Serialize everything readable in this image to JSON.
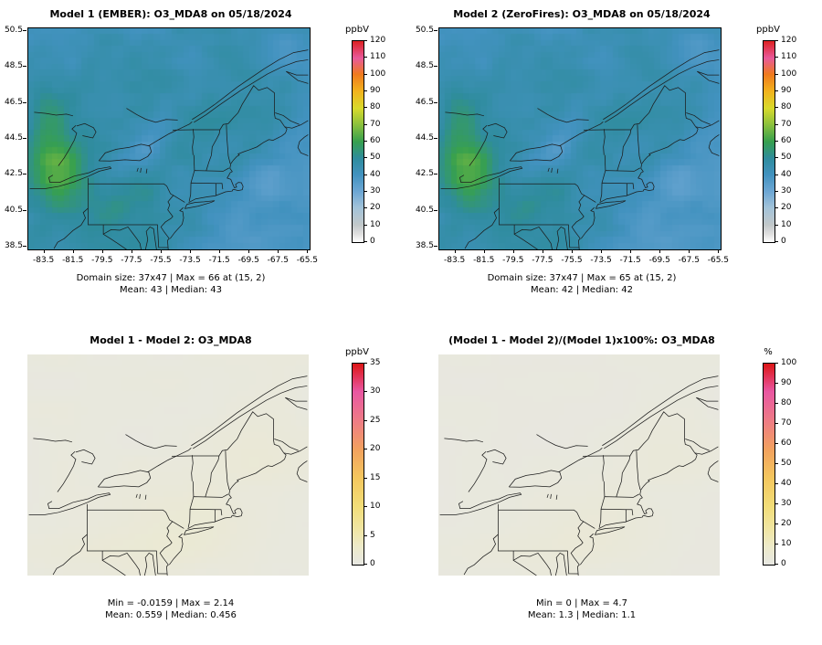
{
  "figure": {
    "background": "#ffffff",
    "layout": "2x2 model evaluation spatial plots"
  },
  "chart_data": [
    {
      "type": "heatmap",
      "panel": "top-left",
      "title": "Model 1 (EMBER): O3_MDA8 on 05/18/2024",
      "model_label": "Model 1 (EMBER)",
      "variable": "O3_MDA8",
      "date": "05/18/2024",
      "colorbar_label": "ppbV",
      "colorbar_range": [
        0,
        120
      ],
      "colorbar_ticks": [
        0,
        10,
        20,
        30,
        40,
        50,
        60,
        70,
        80,
        90,
        100,
        110,
        120
      ],
      "x_ticks": [
        -83.5,
        -81.5,
        -79.5,
        -77.5,
        -75.5,
        -73.5,
        -71.5,
        -69.5,
        -67.5,
        -65.5
      ],
      "y_ticks": [
        38.5,
        40.5,
        42.5,
        44.5,
        46.5,
        48.5,
        50.5
      ],
      "stats": {
        "domain_size": "37x47",
        "max": 66,
        "max_at": "(15, 2)",
        "mean": 43,
        "median": 43
      },
      "stats_line1": "Domain size: 37x47 | Max = 66 at (15, 2)",
      "stats_line2": "Mean: 43 | Median: 43",
      "palette": "conc",
      "field_id": "conc1"
    },
    {
      "type": "heatmap",
      "panel": "top-right",
      "title": "Model 2 (ZeroFires): O3_MDA8 on 05/18/2024",
      "model_label": "Model 2 (ZeroFires)",
      "variable": "O3_MDA8",
      "date": "05/18/2024",
      "colorbar_label": "ppbV",
      "colorbar_range": [
        0,
        120
      ],
      "colorbar_ticks": [
        0,
        10,
        20,
        30,
        40,
        50,
        60,
        70,
        80,
        90,
        100,
        110,
        120
      ],
      "x_ticks": [
        -83.5,
        -81.5,
        -79.5,
        -77.5,
        -75.5,
        -73.5,
        -71.5,
        -69.5,
        -67.5,
        -65.5
      ],
      "y_ticks": [
        38.5,
        40.5,
        42.5,
        44.5,
        46.5,
        48.5,
        50.5
      ],
      "stats": {
        "domain_size": "37x47",
        "max": 65,
        "max_at": "(15, 2)",
        "mean": 42,
        "median": 42
      },
      "stats_line1": "Domain size: 37x47 | Max = 65 at (15, 2)",
      "stats_line2": "Mean: 42 | Median: 42",
      "palette": "conc",
      "field_id": "conc2"
    },
    {
      "type": "heatmap",
      "panel": "bottom-left",
      "title": "Model 1 - Model 2: O3_MDA8",
      "variable": "O3_MDA8",
      "colorbar_label": "ppbV",
      "colorbar_range": [
        0,
        35
      ],
      "colorbar_ticks": [
        0,
        5,
        10,
        15,
        20,
        25,
        30,
        35
      ],
      "stats": {
        "min": -0.0159,
        "max": 2.14,
        "mean": 0.559,
        "median": 0.456
      },
      "stats_line1": "Min = -0.0159 | Max = 2.14",
      "stats_line2": "Mean: 0.559 | Median: 0.456",
      "palette": "warm",
      "field_id": "diff"
    },
    {
      "type": "heatmap",
      "panel": "bottom-right",
      "title": "(Model 1 - Model 2)/(Model 1)x100%: O3_MDA8",
      "variable": "O3_MDA8",
      "colorbar_label": "%",
      "colorbar_range": [
        0,
        100
      ],
      "colorbar_ticks": [
        0,
        10,
        20,
        30,
        40,
        50,
        60,
        70,
        80,
        90,
        100
      ],
      "stats": {
        "min": 0,
        "max": 4.7,
        "mean": 1.3,
        "median": 1.1
      },
      "stats_line1": "Min = 0 | Max = 4.7",
      "stats_line2": "Mean: 1.3 | Median: 1.1",
      "palette": "warm",
      "field_id": "pct"
    }
  ],
  "palettes": {
    "conc": {
      "positions": [
        0,
        0.04,
        0.085,
        0.17,
        0.25,
        0.335,
        0.415,
        0.5,
        0.585,
        0.665,
        0.75,
        0.835,
        0.915,
        1
      ],
      "colors": [
        "#ffffff",
        "#e0e0e0",
        "#c2c8ca",
        "#a3c3d9",
        "#6ea7d4",
        "#4292bf",
        "#2f8c9e",
        "#37a04e",
        "#8cc13d",
        "#d8da2c",
        "#f2b31d",
        "#ef7a1e",
        "#e85a9b",
        "#dd2222"
      ]
    },
    "warm": {
      "positions": [
        0,
        0.09,
        0.17,
        0.29,
        0.43,
        0.57,
        0.71,
        0.86,
        1
      ],
      "colors": [
        "#e7e7e2",
        "#edeaca",
        "#f0e6a6",
        "#f2dd78",
        "#f4c75e",
        "#f2a25e",
        "#ee7d84",
        "#e957a2",
        "#dc1616"
      ]
    }
  }
}
